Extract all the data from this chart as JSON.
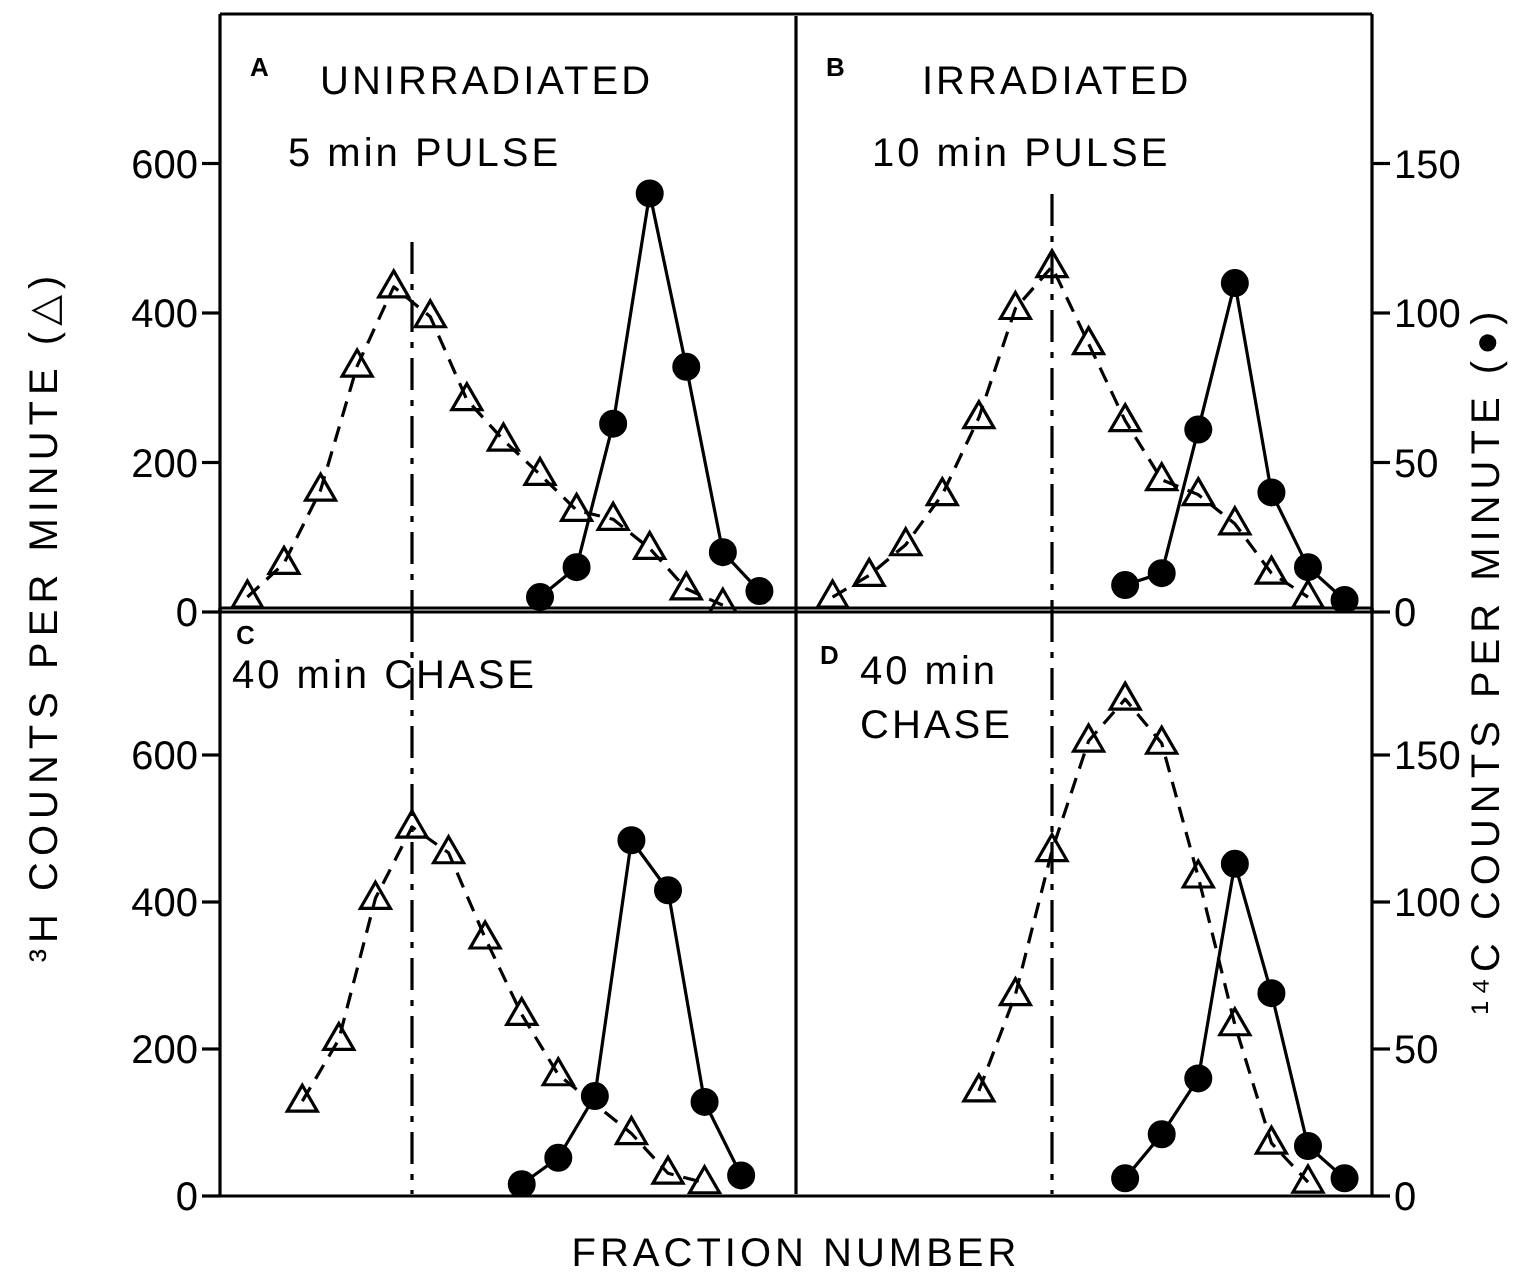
{
  "chart_data": [
    {
      "type": "line",
      "annotations": [
        "A",
        "UNIRRADIATED",
        "5 min PULSE",
        "B",
        "IRRADIATED",
        "10 min PULSE"
      ],
      "ylabel": "³H COUNTS PER MINUTE (△)",
      "categories": [
        null,
        null,
        null,
        null,
        null,
        null,
        null,
        null,
        null,
        null,
        null,
        null,
        null,
        null,
        null,
        null,
        null,
        null,
        null,
        null,
        null,
        null,
        null,
        null,
        null,
        null,
        null,
        null,
        null,
        null,
        null,
        null,
        null,
        null,
        null,
        null,
        null,
        null,
        null,
        null,
        null,
        null,
        null,
        null,
        null,
        null,
        null,
        null,
        null,
        null,
        null,
        null,
        null,
        null,
        null,
        null,
        null,
        null,
        null,
        null,
        null,
        null,
        null
      ],
      "ylim": [
        0,
        800
      ],
      "yticks": [
        0,
        200,
        400,
        600
      ],
      "y2lim": [
        0,
        200
      ],
      "y2ticks": [
        0,
        50,
        100,
        150
      ],
      "series": [
        {
          "color": "#000000",
          "marker": "triangle",
          "line_style": "dashed",
          "values": [
            null,
            20,
            null,
            65,
            null,
            163,
            null,
            329,
            null,
            435,
            null,
            395,
            null,
            284,
            null,
            230,
            null,
            184,
            null,
            136,
            null,
            124,
            null,
            85,
            null,
            31,
            null,
            9,
            null,
            null,
            null,
            null,
            null,
            null,
            null,
            null,
            null,
            null,
            null,
            null,
            null,
            null,
            null,
            null,
            null,
            null,
            null,
            null,
            null,
            null,
            null,
            null,
            null,
            null,
            null,
            null,
            null,
            null,
            null,
            null,
            null,
            null,
            null
          ]
        },
        {
          "color": "#000000",
          "marker": "circle",
          "line_style": "solid",
          "axis": "y2",
          "values": [
            null,
            null,
            null,
            null,
            null,
            null,
            null,
            null,
            null,
            null,
            null,
            null,
            null,
            null,
            null,
            null,
            null,
            5,
            null,
            15,
            null,
            63,
            null,
            140,
            null,
            82,
            null,
            20,
            null,
            7,
            null,
            null,
            null,
            null,
            null,
            null,
            null,
            null,
            null,
            null,
            null,
            null,
            null,
            null,
            null,
            null,
            null,
            null,
            null,
            null,
            null,
            null,
            null,
            null,
            null,
            null,
            null,
            null,
            null,
            null,
            null,
            null,
            null
          ]
        },
        {
          "color": "#000000",
          "marker": "triangle",
          "line_style": "dashed",
          "values": [
            null,
            null,
            null,
            null,
            null,
            null,
            null,
            null,
            null,
            null,
            null,
            null,
            null,
            null,
            null,
            null,
            null,
            null,
            null,
            null,
            null,
            null,
            null,
            null,
            null,
            null,
            null,
            null,
            null,
            null,
            null,
            null,
            null,
            20,
            null,
            49,
            null,
            90,
            null,
            157,
            null,
            260,
            null,
            406,
            null,
            462,
            null,
            359,
            null,
            256,
            null,
            177,
            null,
            157,
            null,
            118,
            null,
            52,
            null,
            20,
            null,
            null,
            null
          ]
        },
        {
          "color": "#000000",
          "marker": "circle",
          "line_style": "solid",
          "axis": "y2",
          "values": [
            null,
            null,
            null,
            null,
            null,
            null,
            null,
            null,
            null,
            null,
            null,
            null,
            null,
            null,
            null,
            null,
            null,
            null,
            null,
            null,
            null,
            null,
            null,
            null,
            null,
            null,
            null,
            null,
            null,
            null,
            null,
            null,
            null,
            null,
            null,
            null,
            null,
            null,
            null,
            null,
            null,
            null,
            null,
            null,
            null,
            null,
            null,
            null,
            null,
            9,
            null,
            13,
            null,
            61,
            null,
            110,
            null,
            40,
            null,
            15,
            null,
            4,
            null
          ]
        }
      ]
    },
    {
      "type": "line",
      "annotations": [
        "C",
        "40 min CHASE",
        "D",
        "40 min CHASE"
      ],
      "xlabel": "FRACTION NUMBER",
      "y2label": "¹⁴C COUNTS PER MINUTE (●)",
      "categories": [
        null,
        null,
        null,
        null,
        null,
        null,
        null,
        null,
        null,
        null,
        null,
        null,
        null,
        null,
        null,
        null,
        null,
        null,
        null,
        null,
        null,
        null,
        null,
        null,
        null,
        null,
        null,
        null,
        null,
        null,
        null,
        null,
        null,
        null,
        null,
        null,
        null,
        null,
        null,
        null,
        null,
        null,
        null,
        null,
        null,
        null,
        null,
        null,
        null,
        null,
        null,
        null,
        null,
        null,
        null,
        null,
        null,
        null,
        null,
        null,
        null,
        null,
        null
      ],
      "ylim": [
        0,
        800
      ],
      "yticks": [
        0,
        200,
        400,
        600
      ],
      "y2lim": [
        0,
        200
      ],
      "y2ticks": [
        0,
        50,
        100,
        150
      ],
      "series": [
        {
          "color": "#000000",
          "marker": "triangle",
          "line_style": "dashed",
          "values": [
            null,
            null,
            null,
            null,
            129,
            null,
            213,
            null,
            405,
            null,
            502,
            null,
            467,
            null,
            351,
            null,
            247,
            null,
            165,
            null,
            null,
            null,
            85,
            null,
            31,
            null,
            18,
            null,
            null,
            null,
            null,
            null,
            null,
            null,
            null,
            null,
            null,
            null,
            null,
            null,
            null,
            null,
            null,
            null,
            null,
            null,
            null,
            null,
            null,
            null,
            null,
            null,
            null,
            null,
            null,
            null,
            null,
            null,
            null,
            null,
            null,
            null,
            null
          ]
        },
        {
          "color": "#000000",
          "marker": "circle",
          "line_style": "solid",
          "axis": "y2",
          "values": [
            null,
            null,
            null,
            null,
            null,
            null,
            null,
            null,
            null,
            null,
            null,
            null,
            null,
            null,
            null,
            null,
            4,
            null,
            13,
            null,
            34,
            null,
            121,
            null,
            104,
            null,
            32,
            null,
            7,
            null,
            null,
            null,
            null,
            null,
            null,
            null,
            null,
            null,
            null,
            null,
            null,
            null,
            null,
            null,
            null,
            null,
            null,
            null,
            null,
            null,
            null,
            null,
            null,
            null,
            null,
            null,
            null,
            null,
            null,
            null,
            null,
            null,
            null
          ]
        },
        {
          "color": "#000000",
          "marker": "triangle",
          "line_style": "dashed",
          "values": [
            null,
            null,
            null,
            null,
            null,
            null,
            null,
            null,
            null,
            null,
            null,
            null,
            null,
            null,
            null,
            null,
            null,
            null,
            null,
            null,
            null,
            null,
            null,
            null,
            null,
            null,
            null,
            null,
            null,
            null,
            null,
            null,
            null,
            null,
            null,
            null,
            null,
            null,
            null,
            null,
            null,
            143,
            null,
            274,
            null,
            470,
            null,
            619,
            null,
            676,
            null,
            616,
            null,
            434,
            null,
            233,
            null,
            72,
            null,
            19,
            null,
            null,
            null
          ]
        },
        {
          "color": "#000000",
          "marker": "circle",
          "line_style": "solid",
          "axis": "y2",
          "values": [
            null,
            null,
            null,
            null,
            null,
            null,
            null,
            null,
            null,
            null,
            null,
            null,
            null,
            null,
            null,
            null,
            null,
            null,
            null,
            null,
            null,
            null,
            null,
            null,
            null,
            null,
            null,
            null,
            null,
            null,
            null,
            null,
            null,
            null,
            null,
            null,
            null,
            null,
            null,
            null,
            null,
            null,
            null,
            null,
            null,
            null,
            null,
            null,
            null,
            6,
            null,
            21,
            null,
            40,
            null,
            113,
            null,
            69,
            null,
            17,
            null,
            6,
            null
          ]
        }
      ]
    }
  ]
}
